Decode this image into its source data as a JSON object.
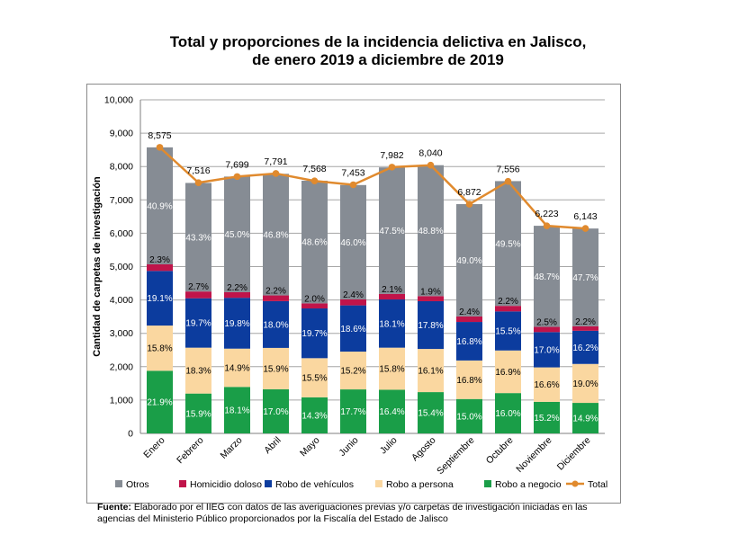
{
  "chart_data": {
    "type": "bar",
    "title": "Total y proporciones de la incidencia delictiva en Jalisco,",
    "subtitle": "de enero 2019 a diciembre de 2019",
    "ylabel": "Cantidad de carpetas de investigación",
    "xlabel": "",
    "ylim": [
      0,
      10000
    ],
    "yticks": [
      "0",
      "1,000",
      "2,000",
      "3,000",
      "4,000",
      "5,000",
      "6,000",
      "7,000",
      "8,000",
      "9,000",
      "10,000"
    ],
    "grid": true,
    "legend_position": "bottom",
    "categories": [
      "Enero",
      "Febrero",
      "Marzo",
      "Abril",
      "Mayo",
      "Junio",
      "Julio",
      "Agosto",
      "Septiembre",
      "Octubre",
      "Noviembre",
      "Diciembre"
    ],
    "totals": [
      8575,
      7516,
      7699,
      7791,
      7568,
      7453,
      7982,
      8040,
      6872,
      7556,
      6223,
      6143
    ],
    "total_labels": [
      "8,575",
      "7,516",
      "7,699",
      "7,791",
      "7,568",
      "7,453",
      "7,982",
      "8,040",
      "6,872",
      "7,556",
      "6,223",
      "6,143"
    ],
    "series": [
      {
        "name": "Robo a negocio",
        "color": "#1a9e48",
        "label_color": "#ffffff",
        "labels": [
          "21.9%",
          "15.9%",
          "18.1%",
          "17.0%",
          "14.3%",
          "17.7%",
          "16.4%",
          "15.4%",
          "15.0%",
          "16.0%",
          "15.2%",
          "14.9%"
        ],
        "values": [
          1878,
          1195,
          1394,
          1324,
          1082,
          1319,
          1309,
          1238,
          1031,
          1209,
          946,
          915
        ]
      },
      {
        "name": "Robo a persona",
        "color": "#fad7a0",
        "label_color": "#000000",
        "labels": [
          "15.8%",
          "18.3%",
          "14.9%",
          "15.9%",
          "15.5%",
          "15.2%",
          "15.8%",
          "16.1%",
          "16.8%",
          "16.9%",
          "16.6%",
          "19.0%"
        ],
        "values": [
          1355,
          1375,
          1147,
          1239,
          1173,
          1133,
          1261,
          1294,
          1155,
          1277,
          1033,
          1167
        ]
      },
      {
        "name": "Robo de vehículos",
        "color": "#0c3c9e",
        "label_color": "#ffffff",
        "labels": [
          "19.1%",
          "19.7%",
          "19.8%",
          "18.0%",
          "19.7%",
          "18.6%",
          "18.1%",
          "17.8%",
          "16.8%",
          "15.5%",
          "17.0%",
          "16.2%"
        ],
        "values": [
          1638,
          1481,
          1524,
          1402,
          1491,
          1386,
          1445,
          1431,
          1155,
          1171,
          1058,
          995
        ]
      },
      {
        "name": "Homicidio doloso",
        "color": "#c0144a",
        "label_color": "#000000",
        "labels": [
          "2.3%",
          "2.7%",
          "2.2%",
          "2.2%",
          "2.0%",
          "2.4%",
          "2.1%",
          "1.9%",
          "2.4%",
          "2.2%",
          "2.5%",
          "2.2%"
        ],
        "values": [
          197,
          203,
          169,
          171,
          151,
          179,
          168,
          153,
          165,
          166,
          156,
          135
        ]
      },
      {
        "name": "Otros",
        "color": "#868c94",
        "label_color": "#ffffff",
        "labels": [
          "40.9%",
          "43.3%",
          "45.0%",
          "46.8%",
          "48.6%",
          "46.0%",
          "47.5%",
          "48.8%",
          "49.0%",
          "49.5%",
          "48.7%",
          "47.7%"
        ],
        "values": [
          3507,
          3254,
          3465,
          3646,
          3678,
          3428,
          3791,
          3924,
          3367,
          3740,
          3031,
          2930
        ]
      }
    ],
    "total_series": {
      "name": "Total",
      "color": "#e08a2e"
    }
  },
  "source": {
    "label": "Fuente:",
    "text": "Elaborado por el IIEG con datos de las averiguaciones previas y/o carpetas de investigación iniciadas en las agencias del Ministerio Público proporcionados por la Fiscalía del Estado de Jalisco"
  }
}
